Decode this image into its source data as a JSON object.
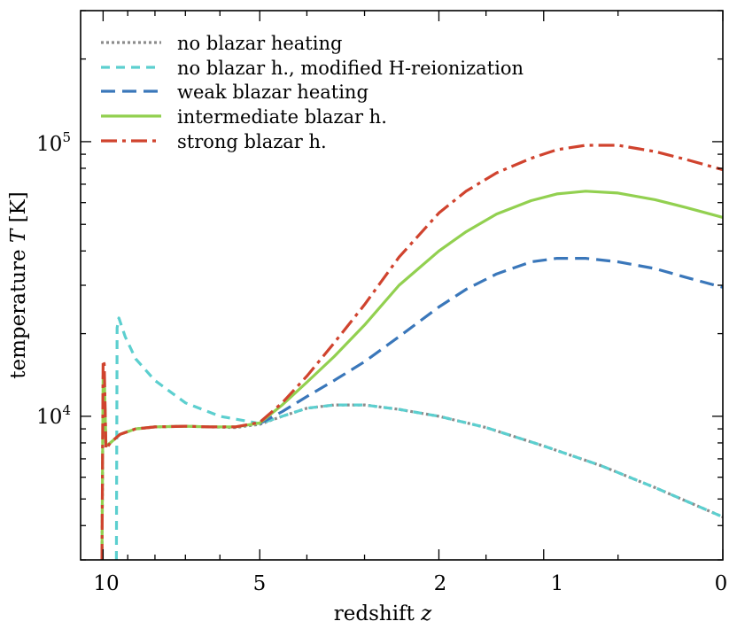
{
  "chart_data": {
    "type": "line",
    "title": "",
    "xlabel": "redshift",
    "xlabel_var": "z",
    "ylabel": "temperature",
    "ylabel_var": "T",
    "ylabel_unit": "[K]",
    "xscale": "log(1+z)",
    "yscale": "log",
    "xlim": [
      11,
      0
    ],
    "ylim": [
      3000,
      300000
    ],
    "x_ticks": [
      {
        "value": 10,
        "label": "10"
      },
      {
        "value": 5,
        "label": "5"
      },
      {
        "value": 2,
        "label": "2"
      },
      {
        "value": 1,
        "label": "1"
      },
      {
        "value": 0,
        "label": "0"
      }
    ],
    "y_ticks": [
      {
        "value": 10000,
        "base": "10",
        "exp": "4"
      },
      {
        "value": 100000,
        "base": "10",
        "exp": "5"
      }
    ],
    "legend_position": "top-left",
    "series": [
      {
        "name": "no blazar heating",
        "key": "no-blazar-heating",
        "color": "#8c8c8c",
        "dash": "3,3",
        "width": 3.2,
        "points": [
          [
            10.05,
            3000
          ],
          [
            10.0,
            12000
          ],
          [
            9.95,
            13500
          ],
          [
            9.88,
            7800
          ],
          [
            9.7,
            8000
          ],
          [
            9.3,
            8600
          ],
          [
            8.7,
            9000
          ],
          [
            8.0,
            9150
          ],
          [
            7.0,
            9200
          ],
          [
            6.3,
            9150
          ],
          [
            5.6,
            9100
          ],
          [
            5.0,
            9350
          ],
          [
            4.5,
            10000
          ],
          [
            4.0,
            10700
          ],
          [
            3.5,
            11000
          ],
          [
            3.0,
            11000
          ],
          [
            2.5,
            10600
          ],
          [
            2.0,
            10000
          ],
          [
            1.5,
            9100
          ],
          [
            1.0,
            7800
          ],
          [
            0.6,
            6600
          ],
          [
            0.3,
            5500
          ],
          [
            0.0,
            4300
          ]
        ]
      },
      {
        "name": "no blazar h., modified H-reionization",
        "key": "modified-h-reionization",
        "color": "#5ccfcf",
        "dash": "10,7",
        "width": 3.2,
        "points": [
          [
            9.45,
            3000
          ],
          [
            9.42,
            21000
          ],
          [
            9.35,
            22800
          ],
          [
            9.1,
            19500
          ],
          [
            8.7,
            16200
          ],
          [
            8.0,
            13500
          ],
          [
            7.0,
            11200
          ],
          [
            6.0,
            10000
          ],
          [
            5.3,
            9600
          ],
          [
            5.0,
            9400
          ],
          [
            4.5,
            10000
          ],
          [
            4.0,
            10700
          ],
          [
            3.5,
            11000
          ],
          [
            3.0,
            11000
          ],
          [
            2.5,
            10600
          ],
          [
            2.0,
            10000
          ],
          [
            1.5,
            9100
          ],
          [
            1.0,
            7800
          ],
          [
            0.6,
            6600
          ],
          [
            0.3,
            5500
          ],
          [
            0.0,
            4300
          ]
        ]
      },
      {
        "name": "weak blazar heating",
        "key": "weak-blazar-heating",
        "color": "#3a77ba",
        "dash": "16,8",
        "width": 3.2,
        "points": [
          [
            5.0,
            9400
          ],
          [
            4.5,
            10400
          ],
          [
            4.0,
            11800
          ],
          [
            3.5,
            13500
          ],
          [
            3.0,
            15800
          ],
          [
            2.5,
            19500
          ],
          [
            2.0,
            25000
          ],
          [
            1.7,
            29000
          ],
          [
            1.4,
            33000
          ],
          [
            1.1,
            36500
          ],
          [
            0.9,
            37600
          ],
          [
            0.7,
            37600
          ],
          [
            0.5,
            36500
          ],
          [
            0.3,
            34500
          ],
          [
            0.15,
            32000
          ],
          [
            0.0,
            29500
          ]
        ]
      },
      {
        "name": "intermediate blazar h.",
        "key": "intermediate-blazar-heating",
        "color": "#92d050",
        "dash": "",
        "width": 3.2,
        "points": [
          [
            10.05,
            3000
          ],
          [
            10.0,
            14000
          ],
          [
            9.95,
            14200
          ],
          [
            9.88,
            7800
          ],
          [
            9.7,
            8000
          ],
          [
            9.3,
            8600
          ],
          [
            8.7,
            9000
          ],
          [
            8.0,
            9150
          ],
          [
            7.0,
            9200
          ],
          [
            6.3,
            9150
          ],
          [
            5.6,
            9150
          ],
          [
            5.0,
            9450
          ],
          [
            4.5,
            11000
          ],
          [
            4.0,
            13300
          ],
          [
            3.5,
            16500
          ],
          [
            3.0,
            21500
          ],
          [
            2.5,
            30000
          ],
          [
            2.0,
            40000
          ],
          [
            1.7,
            47000
          ],
          [
            1.4,
            54500
          ],
          [
            1.1,
            61000
          ],
          [
            0.9,
            64500
          ],
          [
            0.7,
            66000
          ],
          [
            0.5,
            65000
          ],
          [
            0.3,
            61500
          ],
          [
            0.15,
            57500
          ],
          [
            0.0,
            53000
          ]
        ]
      },
      {
        "name": "strong blazar h.",
        "key": "strong-blazar-heating",
        "color": "#d0432e",
        "dash": "18,6,4,6",
        "width": 3.2,
        "points": [
          [
            10.05,
            3000
          ],
          [
            10.0,
            16000
          ],
          [
            9.95,
            15500
          ],
          [
            9.88,
            7600
          ],
          [
            9.7,
            8000
          ],
          [
            9.3,
            8600
          ],
          [
            8.7,
            9000
          ],
          [
            8.0,
            9150
          ],
          [
            7.0,
            9200
          ],
          [
            6.3,
            9150
          ],
          [
            5.6,
            9150
          ],
          [
            5.0,
            9500
          ],
          [
            4.5,
            11200
          ],
          [
            4.0,
            14000
          ],
          [
            3.5,
            18500
          ],
          [
            3.0,
            25500
          ],
          [
            2.5,
            38000
          ],
          [
            2.0,
            55000
          ],
          [
            1.7,
            66000
          ],
          [
            1.4,
            77000
          ],
          [
            1.1,
            87000
          ],
          [
            0.9,
            93500
          ],
          [
            0.7,
            97000
          ],
          [
            0.5,
            97000
          ],
          [
            0.3,
            92000
          ],
          [
            0.15,
            86000
          ],
          [
            0.0,
            79000
          ]
        ]
      }
    ]
  }
}
